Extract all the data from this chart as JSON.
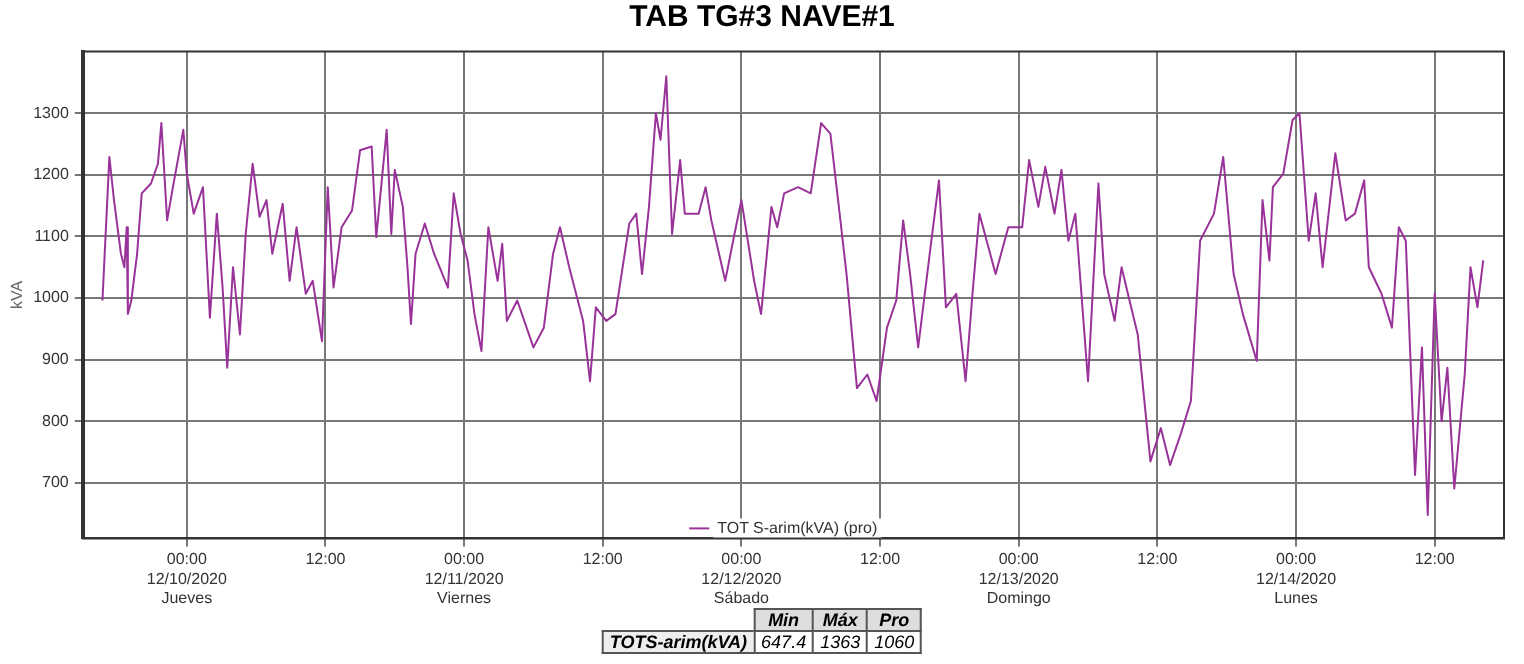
{
  "chart_data": {
    "type": "line",
    "title": "TAB TG#3 NAVE#1",
    "ylabel": "kVA",
    "x": [
      "2020-12-09T16:42",
      "2020-12-09T17:18",
      "2020-12-09T17:42",
      "2020-12-09T18:18",
      "2020-12-09T18:36",
      "2020-12-09T18:48",
      "2020-12-09T18:54",
      "2020-12-09T19:12",
      "2020-12-09T19:42",
      "2020-12-09T20:06",
      "2020-12-09T20:54",
      "2020-12-09T21:30",
      "2020-12-09T21:48",
      "2020-12-09T22:18",
      "2020-12-09T22:48",
      "2020-12-09T23:42",
      "2020-12-10T00:00",
      "2020-12-10T00:36",
      "2020-12-10T01:24",
      "2020-12-10T02:00",
      "2020-12-10T02:36",
      "2020-12-10T03:06",
      "2020-12-10T03:30",
      "2020-12-10T04:00",
      "2020-12-10T04:36",
      "2020-12-10T05:06",
      "2020-12-10T05:42",
      "2020-12-10T06:18",
      "2020-12-10T06:54",
      "2020-12-10T07:24",
      "2020-12-10T08:18",
      "2020-12-10T08:54",
      "2020-12-10T09:30",
      "2020-12-10T10:18",
      "2020-12-10T10:54",
      "2020-12-10T11:42",
      "2020-12-10T12:12",
      "2020-12-10T12:42",
      "2020-12-10T13:24",
      "2020-12-10T14:18",
      "2020-12-10T15:00",
      "2020-12-10T16:00",
      "2020-12-10T16:24",
      "2020-12-10T17:18",
      "2020-12-10T17:42",
      "2020-12-10T18:00",
      "2020-12-10T18:42",
      "2020-12-10T19:06",
      "2020-12-10T19:24",
      "2020-12-10T19:48",
      "2020-12-10T20:36",
      "2020-12-10T21:24",
      "2020-12-10T22:36",
      "2020-12-10T23:06",
      "2020-12-10T23:42",
      "2020-12-11T00:18",
      "2020-12-11T00:54",
      "2020-12-11T01:30",
      "2020-12-11T02:06",
      "2020-12-11T02:54",
      "2020-12-11T03:18",
      "2020-12-11T03:42",
      "2020-12-11T04:36",
      "2020-12-11T06:00",
      "2020-12-11T06:54",
      "2020-12-11T07:42",
      "2020-12-11T08:18",
      "2020-12-11T09:06",
      "2020-12-11T10:18",
      "2020-12-11T10:54",
      "2020-12-11T11:24",
      "2020-12-11T12:18",
      "2020-12-11T13:06",
      "2020-12-11T14:18",
      "2020-12-11T14:54",
      "2020-12-11T15:24",
      "2020-12-11T16:00",
      "2020-12-11T16:36",
      "2020-12-11T17:00",
      "2020-12-11T17:30",
      "2020-12-11T18:00",
      "2020-12-11T18:42",
      "2020-12-11T19:06",
      "2020-12-11T20:18",
      "2020-12-11T20:54",
      "2020-12-11T21:24",
      "2020-12-11T22:36",
      "2020-12-11T23:24",
      "2020-12-12T00:00",
      "2020-12-12T01:06",
      "2020-12-12T01:42",
      "2020-12-12T02:36",
      "2020-12-12T03:06",
      "2020-12-12T03:42",
      "2020-12-12T04:54",
      "2020-12-12T06:00",
      "2020-12-12T06:54",
      "2020-12-12T07:42",
      "2020-12-12T08:18",
      "2020-12-12T09:06",
      "2020-12-12T10:00",
      "2020-12-12T10:54",
      "2020-12-12T11:42",
      "2020-12-12T12:36",
      "2020-12-12T13:24",
      "2020-12-12T14:00",
      "2020-12-12T14:36",
      "2020-12-12T15:18",
      "2020-12-12T16:18",
      "2020-12-12T17:06",
      "2020-12-12T17:42",
      "2020-12-12T18:36",
      "2020-12-12T19:24",
      "2020-12-12T20:00",
      "2020-12-12T20:36",
      "2020-12-12T22:00",
      "2020-12-12T23:06",
      "2020-12-13T00:18",
      "2020-12-13T00:54",
      "2020-12-13T01:42",
      "2020-12-13T02:18",
      "2020-12-13T03:06",
      "2020-12-13T03:42",
      "2020-12-13T04:18",
      "2020-12-13T04:54",
      "2020-12-13T06:00",
      "2020-12-13T06:54",
      "2020-12-13T07:24",
      "2020-12-13T08:18",
      "2020-12-13T08:54",
      "2020-12-13T10:18",
      "2020-12-13T11:24",
      "2020-12-13T12:18",
      "2020-12-13T13:06",
      "2020-12-13T14:00",
      "2020-12-13T14:54",
      "2020-12-13T15:42",
      "2020-12-13T16:54",
      "2020-12-13T17:42",
      "2020-12-13T18:36",
      "2020-12-13T19:24",
      "2020-12-13T20:36",
      "2020-12-13T21:06",
      "2020-12-13T21:42",
      "2020-12-13T22:00",
      "2020-12-13T22:54",
      "2020-12-13T23:42",
      "2020-12-14T00:18",
      "2020-12-14T01:06",
      "2020-12-14T01:42",
      "2020-12-14T02:18",
      "2020-12-14T03:24",
      "2020-12-14T04:18",
      "2020-12-14T05:06",
      "2020-12-14T05:54",
      "2020-12-14T06:18",
      "2020-12-14T07:24",
      "2020-12-14T08:18",
      "2020-12-14T08:54",
      "2020-12-14T09:30",
      "2020-12-14T10:18",
      "2020-12-14T10:54",
      "2020-12-14T11:24",
      "2020-12-14T12:00",
      "2020-12-14T12:36",
      "2020-12-14T13:06",
      "2020-12-14T13:42",
      "2020-12-14T14:36",
      "2020-12-14T15:06",
      "2020-12-14T15:42",
      "2020-12-14T16:12"
    ],
    "series": [
      {
        "name": "TOT S-arim(kVA) (pro)",
        "color": "#993399",
        "values": [
          996,
          1229,
          1159,
          1072,
          1050,
          1115,
          974,
          996,
          1072,
          1170,
          1186,
          1218,
          1284,
          1126,
          1180,
          1273,
          1202,
          1137,
          1180,
          968,
          1137,
          1017,
          887,
          1050,
          941,
          1104,
          1218,
          1132,
          1159,
          1072,
          1153,
          1028,
          1115,
          1007,
          1028,
          930,
          1180,
          1017,
          1115,
          1142,
          1240,
          1246,
          1099,
          1273,
          1104,
          1208,
          1148,
          1050,
          958,
          1072,
          1121,
          1072,
          1017,
          1170,
          1104,
          1061,
          974,
          914,
          1115,
          1028,
          1088,
          963,
          996,
          920,
          952,
          1072,
          1115,
          1050,
          963,
          865,
          985,
          963,
          974,
          1121,
          1137,
          1039,
          1148,
          1300,
          1257,
          1360,
          1104,
          1224,
          1137,
          1137,
          1180,
          1126,
          1028,
          1104,
          1159,
          1028,
          974,
          1148,
          1115,
          1170,
          1180,
          1170,
          1284,
          1267,
          1170,
          1039,
          854,
          876,
          833,
          952,
          996,
          1126,
          1039,
          920,
          1072,
          1191,
          985,
          1007,
          865,
          1007,
          1137,
          1039,
          1115,
          1115,
          1224,
          1148,
          1213,
          1137,
          1208,
          1093,
          1137,
          865,
          1186,
          1039,
          963,
          1050,
          941,
          735,
          789,
          729,
          778,
          833,
          1093,
          1137,
          1229,
          1039,
          974,
          898,
          1159,
          1061,
          1180,
          1202,
          1289,
          1300,
          1093,
          1170,
          1050,
          1235,
          1126,
          1137,
          1191,
          1050,
          1007,
          952,
          1115,
          1093,
          713,
          920,
          648,
          1007,
          800,
          887,
          691,
          876,
          1050,
          985,
          1061
        ]
      }
    ],
    "xlim": [
      "2020-12-09T15:00",
      "2020-12-14T18:00"
    ],
    "xticks": [
      {
        "value": "2020-12-10T00:00",
        "label": "00:00\n12/10/2020\nJueves"
      },
      {
        "value": "2020-12-10T12:00",
        "label": "12:00"
      },
      {
        "value": "2020-12-11T00:00",
        "label": "00:00\n12/11/2020\nViernes"
      },
      {
        "value": "2020-12-11T12:00",
        "label": "12:00"
      },
      {
        "value": "2020-12-12T00:00",
        "label": "00:00\n12/12/2020\nSábado"
      },
      {
        "value": "2020-12-12T12:00",
        "label": "12:00"
      },
      {
        "value": "2020-12-13T00:00",
        "label": "00:00\n12/13/2020\nDomingo"
      },
      {
        "value": "2020-12-13T12:00",
        "label": "12:00"
      },
      {
        "value": "2020-12-14T00:00",
        "label": "00:00\n12/14/2020\nLunes"
      },
      {
        "value": "2020-12-14T12:00",
        "label": "12:00"
      }
    ],
    "ylim": [
      610,
      1400
    ],
    "yticks": [
      700,
      800,
      900,
      1000,
      1100,
      1200,
      1300
    ],
    "grid": true,
    "legend": "bottom",
    "marker": "none",
    "line_style": "solid",
    "annotations": [
      "Min",
      "Máx",
      "Pro",
      "TOTS-arim(kVA)",
      "647.4",
      "1363",
      "1060"
    ]
  }
}
